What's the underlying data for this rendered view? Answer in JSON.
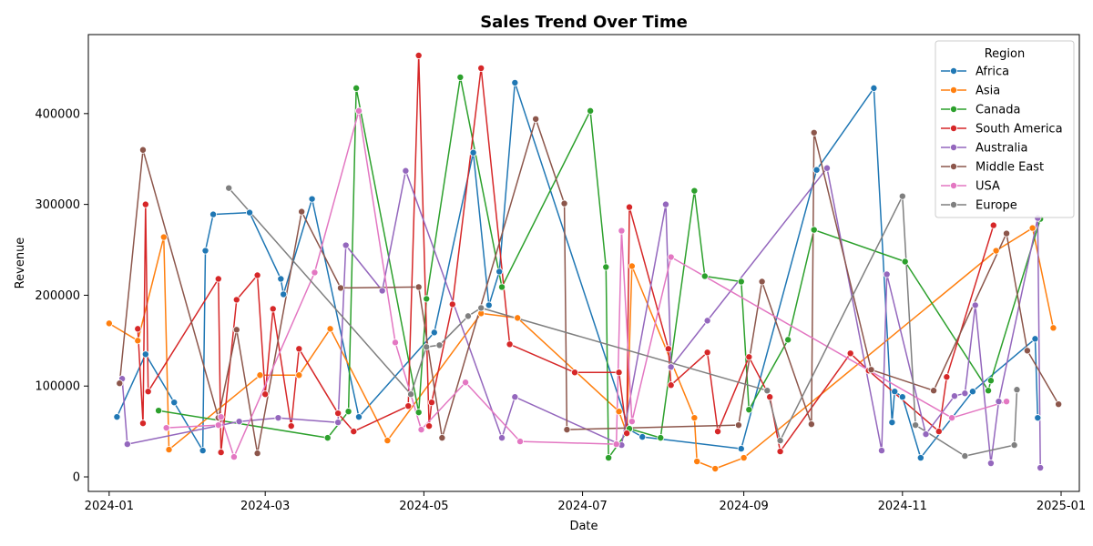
{
  "chart_data": {
    "type": "line",
    "title": "Sales Trend Over Time",
    "xlabel": "Date",
    "ylabel": "Revenue",
    "xlim": [
      "2023-12-24",
      "2025-01-08"
    ],
    "ylim": [
      -16000,
      487000
    ],
    "x_ticks": [
      "2024-01-01",
      "2024-03-01",
      "2024-05-01",
      "2024-07-01",
      "2024-09-01",
      "2024-11-01",
      "2025-01-01"
    ],
    "x_tick_labels": [
      "2024-01",
      "2024-03",
      "2024-05",
      "2024-07",
      "2024-09",
      "2024-11",
      "2025-01"
    ],
    "y_ticks": [
      0,
      100000,
      200000,
      300000,
      400000
    ],
    "y_tick_labels": [
      "0",
      "100000",
      "200000",
      "300000",
      "400000"
    ],
    "legend": {
      "title": "Region",
      "position": "top-right"
    },
    "series": [
      {
        "name": "Africa",
        "color": "#1f77b4",
        "points": [
          [
            "2024-01-04",
            66000
          ],
          [
            "2024-01-15",
            135000
          ],
          [
            "2024-01-26",
            82000
          ],
          [
            "2024-02-06",
            29000
          ],
          [
            "2024-02-07",
            249000
          ],
          [
            "2024-02-10",
            289000
          ],
          [
            "2024-02-24",
            291000
          ],
          [
            "2024-03-07",
            218000
          ],
          [
            "2024-03-08",
            201000
          ],
          [
            "2024-03-19",
            306000
          ],
          [
            "2024-04-06",
            66000
          ],
          [
            "2024-05-05",
            159000
          ],
          [
            "2024-05-20",
            357000
          ],
          [
            "2024-05-26",
            189000
          ],
          [
            "2024-05-30",
            226000
          ],
          [
            "2024-06-05",
            434000
          ],
          [
            "2024-07-19",
            52000
          ],
          [
            "2024-07-24",
            44000
          ],
          [
            "2024-08-31",
            31000
          ],
          [
            "2024-09-29",
            338000
          ],
          [
            "2024-10-21",
            428000
          ],
          [
            "2024-10-28",
            60000
          ],
          [
            "2024-10-29",
            94000
          ],
          [
            "2024-11-01",
            88000
          ],
          [
            "2024-11-08",
            21000
          ],
          [
            "2024-11-28",
            94000
          ],
          [
            "2024-12-22",
            152000
          ],
          [
            "2024-12-23",
            65000
          ]
        ]
      },
      {
        "name": "Asia",
        "color": "#ff7f0e",
        "points": [
          [
            "2024-01-01",
            169000
          ],
          [
            "2024-01-12",
            150000
          ],
          [
            "2024-01-22",
            264000
          ],
          [
            "2024-01-24",
            30000
          ],
          [
            "2024-02-28",
            112000
          ],
          [
            "2024-03-14",
            112000
          ],
          [
            "2024-03-26",
            163000
          ],
          [
            "2024-04-17",
            40000
          ],
          [
            "2024-05-23",
            180000
          ],
          [
            "2024-06-06",
            175000
          ],
          [
            "2024-07-15",
            72000
          ],
          [
            "2024-07-18",
            48000
          ],
          [
            "2024-07-20",
            232000
          ],
          [
            "2024-08-13",
            65000
          ],
          [
            "2024-08-14",
            17000
          ],
          [
            "2024-08-21",
            9000
          ],
          [
            "2024-09-01",
            21000
          ],
          [
            "2024-12-07",
            249000
          ],
          [
            "2024-12-21",
            274000
          ],
          [
            "2024-12-29",
            164000
          ]
        ]
      },
      {
        "name": "Canada",
        "color": "#2ca02c",
        "points": [
          [
            "2024-01-20",
            73000
          ],
          [
            "2024-03-25",
            43000
          ],
          [
            "2024-04-02",
            72000
          ],
          [
            "2024-04-05",
            428000
          ],
          [
            "2024-04-29",
            71000
          ],
          [
            "2024-05-02",
            196000
          ],
          [
            "2024-05-15",
            440000
          ],
          [
            "2024-05-31",
            209000
          ],
          [
            "2024-07-04",
            403000
          ],
          [
            "2024-07-10",
            231000
          ],
          [
            "2024-07-11",
            21000
          ],
          [
            "2024-07-19",
            53000
          ],
          [
            "2024-07-31",
            43000
          ],
          [
            "2024-08-13",
            315000
          ],
          [
            "2024-08-17",
            221000
          ],
          [
            "2024-08-31",
            215000
          ],
          [
            "2024-09-03",
            74000
          ],
          [
            "2024-09-18",
            151000
          ],
          [
            "2024-09-28",
            272000
          ],
          [
            "2024-11-02",
            237000
          ],
          [
            "2024-12-04",
            95000
          ],
          [
            "2024-12-05",
            106000
          ],
          [
            "2024-12-24",
            284000
          ]
        ]
      },
      {
        "name": "South America",
        "color": "#d62728",
        "points": [
          [
            "2024-01-12",
            163000
          ],
          [
            "2024-01-14",
            59000
          ],
          [
            "2024-01-15",
            300000
          ],
          [
            "2024-01-16",
            94000
          ],
          [
            "2024-02-12",
            218000
          ],
          [
            "2024-02-13",
            27000
          ],
          [
            "2024-02-19",
            195000
          ],
          [
            "2024-02-27",
            222000
          ],
          [
            "2024-03-01",
            91000
          ],
          [
            "2024-03-04",
            185000
          ],
          [
            "2024-03-11",
            56000
          ],
          [
            "2024-03-14",
            141000
          ],
          [
            "2024-03-29",
            70000
          ],
          [
            "2024-04-04",
            50000
          ],
          [
            "2024-04-25",
            78000
          ],
          [
            "2024-04-29",
            464000
          ],
          [
            "2024-05-03",
            56000
          ],
          [
            "2024-05-04",
            82000
          ],
          [
            "2024-05-12",
            190000
          ],
          [
            "2024-05-23",
            450000
          ],
          [
            "2024-06-03",
            146000
          ],
          [
            "2024-06-28",
            115000
          ],
          [
            "2024-07-15",
            115000
          ],
          [
            "2024-07-18",
            48000
          ],
          [
            "2024-07-19",
            297000
          ],
          [
            "2024-08-03",
            141000
          ],
          [
            "2024-08-04",
            101000
          ],
          [
            "2024-08-18",
            137000
          ],
          [
            "2024-08-22",
            50000
          ],
          [
            "2024-09-03",
            132000
          ],
          [
            "2024-09-11",
            88000
          ],
          [
            "2024-09-15",
            28000
          ],
          [
            "2024-10-12",
            136000
          ],
          [
            "2024-10-19",
            117000
          ],
          [
            "2024-11-15",
            50000
          ],
          [
            "2024-11-18",
            110000
          ],
          [
            "2024-12-06",
            277000
          ]
        ]
      },
      {
        "name": "Australia",
        "color": "#9467bd",
        "points": [
          [
            "2024-01-06",
            108000
          ],
          [
            "2024-01-08",
            36000
          ],
          [
            "2024-02-20",
            61000
          ],
          [
            "2024-03-06",
            65000
          ],
          [
            "2024-03-29",
            60000
          ],
          [
            "2024-04-01",
            255000
          ],
          [
            "2024-04-15",
            205000
          ],
          [
            "2024-04-24",
            337000
          ],
          [
            "2024-05-31",
            43000
          ],
          [
            "2024-06-05",
            88000
          ],
          [
            "2024-07-16",
            35000
          ],
          [
            "2024-08-02",
            300000
          ],
          [
            "2024-08-04",
            121000
          ],
          [
            "2024-08-18",
            172000
          ],
          [
            "2024-10-03",
            340000
          ],
          [
            "2024-10-24",
            29000
          ],
          [
            "2024-10-26",
            223000
          ],
          [
            "2024-11-10",
            47000
          ],
          [
            "2024-11-21",
            89000
          ],
          [
            "2024-11-25",
            92000
          ],
          [
            "2024-11-29",
            189000
          ],
          [
            "2024-12-05",
            15000
          ],
          [
            "2024-12-08",
            83000
          ],
          [
            "2024-12-23",
            285000
          ],
          [
            "2024-12-24",
            10000
          ]
        ]
      },
      {
        "name": "Middle East",
        "color": "#8c564b",
        "points": [
          [
            "2024-01-05",
            103000
          ],
          [
            "2024-01-14",
            360000
          ],
          [
            "2024-02-12",
            65000
          ],
          [
            "2024-02-19",
            162000
          ],
          [
            "2024-02-27",
            26000
          ],
          [
            "2024-03-15",
            292000
          ],
          [
            "2024-03-30",
            208000
          ],
          [
            "2024-04-29",
            209000
          ],
          [
            "2024-05-08",
            43000
          ],
          [
            "2024-06-13",
            394000
          ],
          [
            "2024-06-24",
            301000
          ],
          [
            "2024-06-25",
            52000
          ],
          [
            "2024-08-30",
            57000
          ],
          [
            "2024-09-08",
            215000
          ],
          [
            "2024-09-27",
            58000
          ],
          [
            "2024-09-28",
            379000
          ],
          [
            "2024-10-20",
            118000
          ],
          [
            "2024-11-13",
            95000
          ],
          [
            "2024-12-11",
            268000
          ],
          [
            "2024-12-19",
            139000
          ],
          [
            "2024-12-31",
            80000
          ]
        ]
      },
      {
        "name": "USA",
        "color": "#e377c2",
        "points": [
          [
            "2024-01-23",
            54000
          ],
          [
            "2024-02-12",
            57000
          ],
          [
            "2024-02-13",
            66000
          ],
          [
            "2024-02-18",
            22000
          ],
          [
            "2024-03-20",
            225000
          ],
          [
            "2024-04-06",
            403000
          ],
          [
            "2024-04-20",
            148000
          ],
          [
            "2024-04-30",
            52000
          ],
          [
            "2024-05-17",
            104000
          ],
          [
            "2024-06-07",
            39000
          ],
          [
            "2024-07-14",
            36000
          ],
          [
            "2024-07-16",
            271000
          ],
          [
            "2024-07-20",
            61000
          ],
          [
            "2024-08-04",
            242000
          ],
          [
            "2024-11-20",
            65000
          ],
          [
            "2024-12-11",
            83000
          ]
        ]
      },
      {
        "name": "Europe",
        "color": "#7f7f7f",
        "points": [
          [
            "2024-02-16",
            318000
          ],
          [
            "2024-04-26",
            91000
          ],
          [
            "2024-05-02",
            143000
          ],
          [
            "2024-05-07",
            145000
          ],
          [
            "2024-05-18",
            177000
          ],
          [
            "2024-05-23",
            186000
          ],
          [
            "2024-09-10",
            95000
          ],
          [
            "2024-09-15",
            40000
          ],
          [
            "2024-11-01",
            309000
          ],
          [
            "2024-11-06",
            57000
          ],
          [
            "2024-11-25",
            23000
          ],
          [
            "2024-12-14",
            35000
          ],
          [
            "2024-12-15",
            96000
          ]
        ]
      }
    ]
  }
}
